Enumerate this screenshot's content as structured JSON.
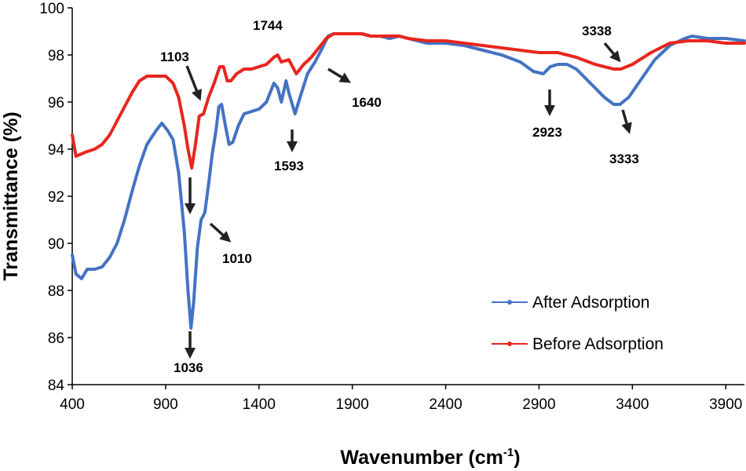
{
  "chart_data": {
    "type": "line",
    "title": "",
    "xlabel_main": "Wavenumber (cm",
    "xlabel_sup": "-1",
    "xlabel_end": ")",
    "ylabel": "Transmittance (%)",
    "xlim": [
      400,
      4000
    ],
    "ylim": [
      84,
      100
    ],
    "xticks": [
      400,
      900,
      1400,
      1900,
      2400,
      2900,
      3400,
      3900
    ],
    "yticks": [
      84,
      86,
      88,
      90,
      92,
      94,
      96,
      98,
      100
    ],
    "grid": false,
    "legend_position": "bottom-right",
    "series": [
      {
        "name": "After Adsorption",
        "color": "#4472C4",
        "points": [
          [
            400,
            89.5
          ],
          [
            420,
            88.7
          ],
          [
            450,
            88.5
          ],
          [
            480,
            88.9
          ],
          [
            520,
            88.9
          ],
          [
            560,
            89.0
          ],
          [
            600,
            89.4
          ],
          [
            640,
            90.0
          ],
          [
            680,
            91.0
          ],
          [
            720,
            92.2
          ],
          [
            760,
            93.3
          ],
          [
            800,
            94.2
          ],
          [
            850,
            94.8
          ],
          [
            880,
            95.1
          ],
          [
            910,
            94.8
          ],
          [
            940,
            94.4
          ],
          [
            970,
            93.0
          ],
          [
            1000,
            90.5
          ],
          [
            1020,
            88.0
          ],
          [
            1036,
            86.4
          ],
          [
            1050,
            87.5
          ],
          [
            1070,
            89.8
          ],
          [
            1090,
            91.0
          ],
          [
            1110,
            91.3
          ],
          [
            1130,
            92.5
          ],
          [
            1150,
            93.8
          ],
          [
            1170,
            94.8
          ],
          [
            1185,
            95.8
          ],
          [
            1200,
            95.9
          ],
          [
            1220,
            95.0
          ],
          [
            1240,
            94.2
          ],
          [
            1260,
            94.3
          ],
          [
            1290,
            95.0
          ],
          [
            1320,
            95.5
          ],
          [
            1360,
            95.6
          ],
          [
            1400,
            95.7
          ],
          [
            1440,
            96.0
          ],
          [
            1480,
            96.8
          ],
          [
            1500,
            96.6
          ],
          [
            1520,
            96.0
          ],
          [
            1545,
            96.9
          ],
          [
            1560,
            96.4
          ],
          [
            1593,
            95.5
          ],
          [
            1620,
            96.2
          ],
          [
            1660,
            97.2
          ],
          [
            1700,
            97.7
          ],
          [
            1740,
            98.3
          ],
          [
            1770,
            98.8
          ],
          [
            1800,
            98.9
          ],
          [
            1850,
            98.9
          ],
          [
            1900,
            98.9
          ],
          [
            1950,
            98.9
          ],
          [
            2000,
            98.8
          ],
          [
            2050,
            98.8
          ],
          [
            2100,
            98.7
          ],
          [
            2150,
            98.8
          ],
          [
            2200,
            98.7
          ],
          [
            2250,
            98.6
          ],
          [
            2300,
            98.5
          ],
          [
            2350,
            98.5
          ],
          [
            2400,
            98.5
          ],
          [
            2500,
            98.4
          ],
          [
            2600,
            98.2
          ],
          [
            2700,
            98.0
          ],
          [
            2800,
            97.7
          ],
          [
            2870,
            97.3
          ],
          [
            2923,
            97.2
          ],
          [
            2960,
            97.5
          ],
          [
            3000,
            97.6
          ],
          [
            3050,
            97.6
          ],
          [
            3100,
            97.4
          ],
          [
            3150,
            97.0
          ],
          [
            3200,
            96.6
          ],
          [
            3250,
            96.2
          ],
          [
            3300,
            95.9
          ],
          [
            3333,
            95.9
          ],
          [
            3380,
            96.2
          ],
          [
            3450,
            97.0
          ],
          [
            3520,
            97.8
          ],
          [
            3600,
            98.4
          ],
          [
            3680,
            98.7
          ],
          [
            3720,
            98.8
          ],
          [
            3800,
            98.7
          ],
          [
            3900,
            98.7
          ],
          [
            4000,
            98.6
          ]
        ]
      },
      {
        "name": "Before Adsorption",
        "color": "#E8261E",
        "points": [
          [
            400,
            94.6
          ],
          [
            420,
            93.7
          ],
          [
            450,
            93.8
          ],
          [
            480,
            93.9
          ],
          [
            520,
            94.0
          ],
          [
            560,
            94.2
          ],
          [
            600,
            94.6
          ],
          [
            640,
            95.2
          ],
          [
            680,
            95.8
          ],
          [
            720,
            96.4
          ],
          [
            760,
            96.9
          ],
          [
            800,
            97.1
          ],
          [
            850,
            97.1
          ],
          [
            900,
            97.1
          ],
          [
            940,
            96.8
          ],
          [
            970,
            96.2
          ],
          [
            1000,
            95.0
          ],
          [
            1020,
            94.0
          ],
          [
            1040,
            93.2
          ],
          [
            1060,
            94.2
          ],
          [
            1080,
            95.4
          ],
          [
            1103,
            95.5
          ],
          [
            1130,
            96.2
          ],
          [
            1160,
            96.8
          ],
          [
            1190,
            97.5
          ],
          [
            1210,
            97.5
          ],
          [
            1230,
            96.9
          ],
          [
            1250,
            96.9
          ],
          [
            1280,
            97.2
          ],
          [
            1320,
            97.4
          ],
          [
            1360,
            97.4
          ],
          [
            1400,
            97.5
          ],
          [
            1440,
            97.6
          ],
          [
            1480,
            97.9
          ],
          [
            1500,
            98.0
          ],
          [
            1520,
            97.7
          ],
          [
            1560,
            97.8
          ],
          [
            1600,
            97.2
          ],
          [
            1640,
            97.6
          ],
          [
            1680,
            97.9
          ],
          [
            1720,
            98.3
          ],
          [
            1760,
            98.7
          ],
          [
            1800,
            98.9
          ],
          [
            1850,
            98.9
          ],
          [
            1900,
            98.9
          ],
          [
            1950,
            98.9
          ],
          [
            2000,
            98.8
          ],
          [
            2050,
            98.8
          ],
          [
            2100,
            98.8
          ],
          [
            2150,
            98.8
          ],
          [
            2200,
            98.7
          ],
          [
            2300,
            98.6
          ],
          [
            2400,
            98.6
          ],
          [
            2500,
            98.5
          ],
          [
            2600,
            98.4
          ],
          [
            2700,
            98.3
          ],
          [
            2800,
            98.2
          ],
          [
            2900,
            98.1
          ],
          [
            3000,
            98.1
          ],
          [
            3100,
            97.9
          ],
          [
            3200,
            97.6
          ],
          [
            3300,
            97.4
          ],
          [
            3338,
            97.4
          ],
          [
            3400,
            97.6
          ],
          [
            3500,
            98.1
          ],
          [
            3600,
            98.5
          ],
          [
            3700,
            98.6
          ],
          [
            3800,
            98.6
          ],
          [
            3900,
            98.5
          ],
          [
            4000,
            98.5
          ]
        ]
      }
    ],
    "annotations": [
      {
        "text": "1744",
        "x": 1744
      },
      {
        "text": "1103",
        "x": 1103
      },
      {
        "text": "1593",
        "x": 1593
      },
      {
        "text": "1640",
        "x": 1640
      },
      {
        "text": "1010",
        "x": 1010
      },
      {
        "text": "1036",
        "x": 1036
      },
      {
        "text": "2923",
        "x": 2923
      },
      {
        "text": "3338",
        "x": 3338
      },
      {
        "text": "3333",
        "x": 3333
      }
    ]
  }
}
